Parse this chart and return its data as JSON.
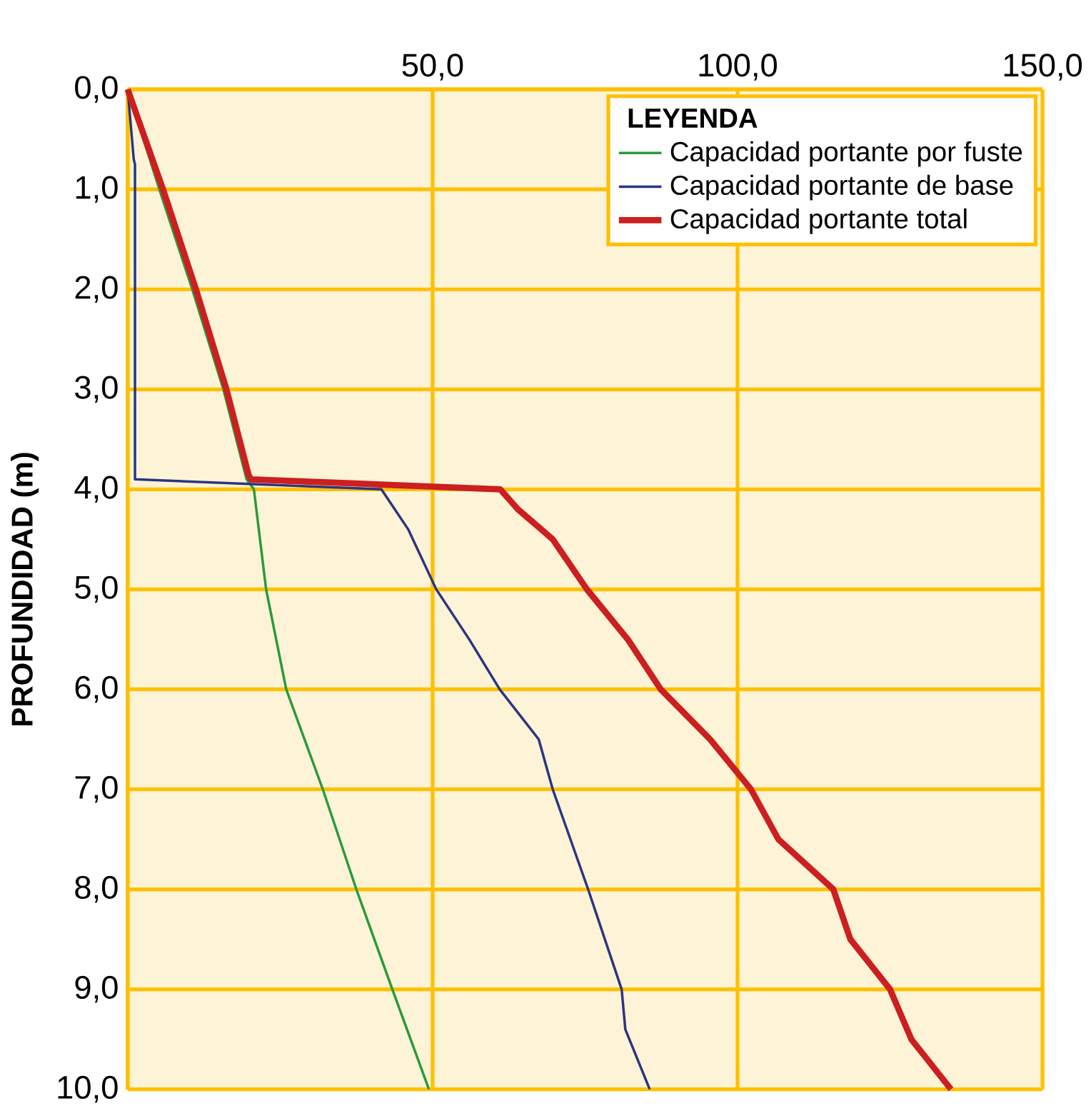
{
  "chart_data": {
    "type": "line",
    "ylabel": "PROFUNDIDAD (m)",
    "legend_title": "LEYENDA",
    "legend": "top right",
    "grid": true,
    "line_style": "solid",
    "marker": "none",
    "xlim": [
      0,
      150
    ],
    "xticks": [
      {
        "value": 0,
        "label": null
      },
      {
        "value": 50,
        "label": "50,0"
      },
      {
        "value": 100,
        "label": "100,0"
      },
      {
        "value": 150,
        "label": "150,0"
      }
    ],
    "ylim": [
      10,
      0
    ],
    "yticks": [
      {
        "value": 0,
        "label": "0,0"
      },
      {
        "value": 1,
        "label": "1,0"
      },
      {
        "value": 2,
        "label": "2,0"
      },
      {
        "value": 3,
        "label": "3,0"
      },
      {
        "value": 4,
        "label": "4,0"
      },
      {
        "value": 5,
        "label": "5,0"
      },
      {
        "value": 6,
        "label": "6,0"
      },
      {
        "value": 7,
        "label": "7,0"
      },
      {
        "value": 8,
        "label": "8,0"
      },
      {
        "value": 9,
        "label": "9,0"
      },
      {
        "value": 10,
        "label": "10,0"
      }
    ],
    "series": [
      {
        "name": "Capacidad portante por fuste",
        "color": "#2a9a3a",
        "x": [
          0,
          5.2,
          10.6,
          15.7,
          19.5,
          20.7,
          22.7,
          26,
          32,
          37.5,
          43.4,
          49.4
        ],
        "values": [
          0,
          1,
          2,
          3,
          3.9,
          4,
          5,
          6,
          7,
          8,
          9,
          10
        ]
      },
      {
        "name": "Capacidad portante de base",
        "color": "#2b3580",
        "x": [
          0,
          1,
          1.2,
          1.2,
          41.6,
          46,
          50.6,
          56,
          61,
          67.4,
          69.7,
          75.5,
          81,
          81.6,
          85.6
        ],
        "values": [
          0,
          0.7,
          0.75,
          3.9,
          4,
          4.4,
          5,
          5.5,
          6,
          6.5,
          7,
          8,
          9,
          9.4,
          10
        ]
      },
      {
        "name": "Capacidad portante total",
        "color": "#cc1f1f",
        "x": [
          0,
          5.8,
          11.2,
          16.2,
          19.8,
          20.2,
          61.1,
          64,
          69.7,
          75.3,
          82,
          87.4,
          95.5,
          102.2,
          106.7,
          115.7,
          118.5,
          125,
          128.5,
          135
        ],
        "values": [
          0,
          1,
          2,
          3,
          3.85,
          3.9,
          4,
          4.2,
          4.5,
          5,
          5.5,
          6,
          6.5,
          7,
          7.5,
          8,
          8.5,
          9,
          9.5,
          10
        ]
      }
    ]
  }
}
